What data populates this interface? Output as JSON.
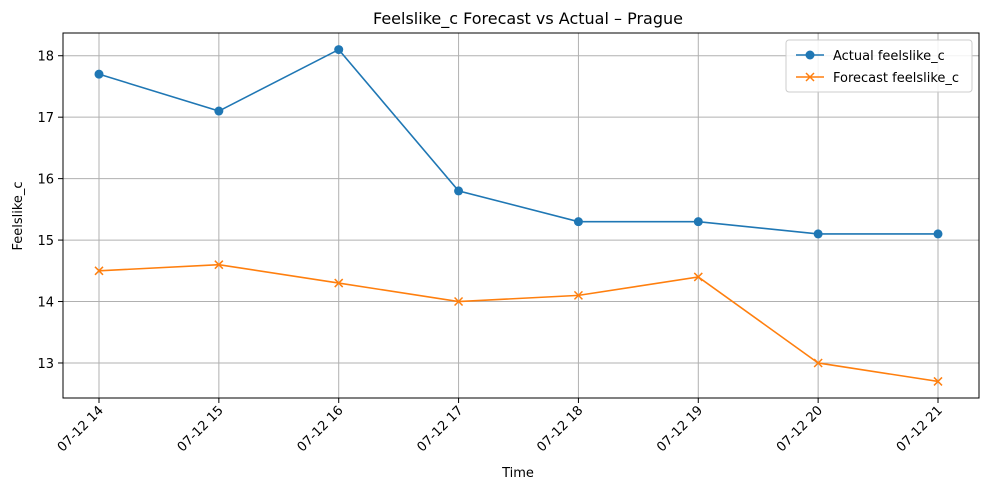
{
  "chart_data": {
    "type": "line",
    "title": "Feelslike_c Forecast vs Actual – Prague",
    "xlabel": "Time",
    "ylabel": "Feelslike_c",
    "categories": [
      "07-12 14",
      "07-12 15",
      "07-12 16",
      "07-12 17",
      "07-12 18",
      "07-12 19",
      "07-12 20",
      "07-12 21"
    ],
    "yticks": [
      13,
      14,
      15,
      16,
      17,
      18
    ],
    "ylim": [
      12.43,
      18.37
    ],
    "grid": true,
    "legend_position": "top-right",
    "series": [
      {
        "name": "Actual feelslike_c",
        "color": "#1f77b4",
        "marker": "circle",
        "values": [
          17.7,
          17.1,
          18.1,
          15.8,
          15.3,
          15.3,
          15.1,
          15.1
        ]
      },
      {
        "name": "Forecast feelslike_c",
        "color": "#ff7f0e",
        "marker": "x",
        "values": [
          14.5,
          14.6,
          14.3,
          14.0,
          14.1,
          14.4,
          13.0,
          12.7
        ]
      }
    ]
  }
}
